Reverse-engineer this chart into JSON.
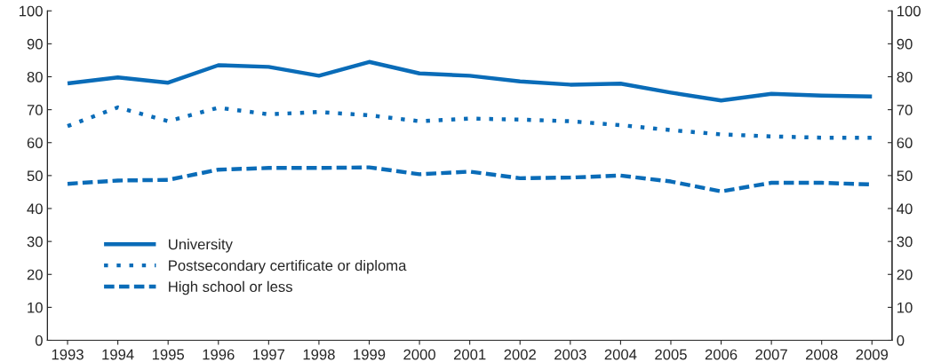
{
  "chart_data": {
    "type": "line",
    "x": [
      1993,
      1994,
      1995,
      1996,
      1997,
      1998,
      1999,
      2000,
      2001,
      2002,
      2003,
      2004,
      2005,
      2006,
      2007,
      2008,
      2009
    ],
    "series": [
      {
        "name": "University",
        "color": "#0a6cb8",
        "line_style": "solid",
        "values": [
          78,
          79.8,
          78.2,
          83.5,
          83,
          80.3,
          84.5,
          81,
          80.3,
          78.6,
          77.6,
          77.9,
          75.2,
          72.8,
          74.8,
          74.3,
          74.0
        ]
      },
      {
        "name": "Postsecondary certificate or diploma",
        "color": "#0a6cb8",
        "line_style": "dotted",
        "values": [
          65,
          70.7,
          66.5,
          70.6,
          68.6,
          69.3,
          68.3,
          66.5,
          67.3,
          67.0,
          66.5,
          65.3,
          63.8,
          62.5,
          61.9,
          61.5,
          61.5
        ]
      },
      {
        "name": "High school or less",
        "color": "#0a6cb8",
        "line_style": "dashed",
        "values": [
          47.5,
          48.5,
          48.7,
          51.8,
          52.3,
          52.3,
          52.5,
          50.4,
          51.2,
          49.2,
          49.4,
          50,
          48.2,
          45.2,
          47.8,
          47.8,
          47.3
        ]
      }
    ],
    "xlim": [
      1992.6,
      2009.4
    ],
    "xticks": [
      1993,
      1994,
      1995,
      1996,
      1997,
      1998,
      1999,
      2000,
      2001,
      2002,
      2003,
      2004,
      2005,
      2006,
      2007,
      2008,
      2009
    ],
    "ylim": [
      0,
      100
    ],
    "yticks": [
      0,
      10,
      20,
      30,
      40,
      50,
      60,
      70,
      80,
      90,
      100
    ],
    "y2lim": [
      0,
      100
    ],
    "y2ticks": [
      0,
      10,
      20,
      30,
      40,
      50,
      60,
      70,
      80,
      90,
      100
    ],
    "grid": false,
    "legend": "bottom left",
    "marker": "none"
  }
}
